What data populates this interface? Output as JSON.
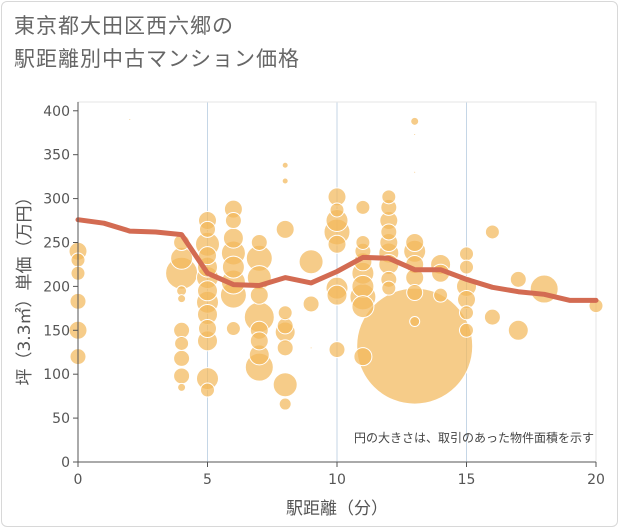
{
  "title": {
    "line1": "東京都大田区西六郷の",
    "line2": "駅距離別中古マンション価格"
  },
  "chart_data": {
    "type": "scatter",
    "xlabel": "駅距離（分）",
    "ylabel": "坪（3.3㎡）単価（万円）",
    "annotation": "円の大きさは、取引のあった物件面積を示す",
    "xlim": [
      0,
      20
    ],
    "ylim": [
      0,
      410
    ],
    "x_ticks": [
      0,
      5,
      10,
      15,
      20
    ],
    "y_ticks": [
      0,
      50,
      100,
      150,
      200,
      250,
      300,
      350,
      400
    ],
    "colors": {
      "bubble": "#f3b95b",
      "line": "#d36b52",
      "grid": "#c5d6e6",
      "text": "#555555"
    },
    "bubbles": [
      {
        "x": 0,
        "y": 240,
        "s": 9
      },
      {
        "x": 0,
        "y": 230,
        "s": 7
      },
      {
        "x": 0,
        "y": 215,
        "s": 7
      },
      {
        "x": 0,
        "y": 183,
        "s": 8
      },
      {
        "x": 0,
        "y": 150,
        "s": 9
      },
      {
        "x": 0,
        "y": 120,
        "s": 8
      },
      {
        "x": 2,
        "y": 390,
        "s": 1
      },
      {
        "x": 4,
        "y": 250,
        "s": 8
      },
      {
        "x": 4,
        "y": 232,
        "s": 11
      },
      {
        "x": 4,
        "y": 215,
        "s": 16
      },
      {
        "x": 4,
        "y": 195,
        "s": 5
      },
      {
        "x": 4,
        "y": 186,
        "s": 4
      },
      {
        "x": 4,
        "y": 150,
        "s": 8
      },
      {
        "x": 4,
        "y": 135,
        "s": 7
      },
      {
        "x": 4,
        "y": 118,
        "s": 8
      },
      {
        "x": 4,
        "y": 98,
        "s": 8
      },
      {
        "x": 4,
        "y": 85,
        "s": 4
      },
      {
        "x": 5,
        "y": 275,
        "s": 9
      },
      {
        "x": 5,
        "y": 265,
        "s": 8
      },
      {
        "x": 5,
        "y": 248,
        "s": 12
      },
      {
        "x": 5,
        "y": 235,
        "s": 9
      },
      {
        "x": 5,
        "y": 222,
        "s": 10
      },
      {
        "x": 5,
        "y": 210,
        "s": 11
      },
      {
        "x": 5,
        "y": 195,
        "s": 10
      },
      {
        "x": 5,
        "y": 182,
        "s": 11
      },
      {
        "x": 5,
        "y": 168,
        "s": 10
      },
      {
        "x": 5,
        "y": 152,
        "s": 9
      },
      {
        "x": 5,
        "y": 138,
        "s": 10
      },
      {
        "x": 5,
        "y": 95,
        "s": 11
      },
      {
        "x": 5,
        "y": 82,
        "s": 7
      },
      {
        "x": 6,
        "y": 288,
        "s": 9
      },
      {
        "x": 6,
        "y": 275,
        "s": 8
      },
      {
        "x": 6,
        "y": 255,
        "s": 10
      },
      {
        "x": 6,
        "y": 238,
        "s": 12
      },
      {
        "x": 6,
        "y": 222,
        "s": 11
      },
      {
        "x": 6,
        "y": 205,
        "s": 12
      },
      {
        "x": 6,
        "y": 190,
        "s": 13
      },
      {
        "x": 6,
        "y": 152,
        "s": 7
      },
      {
        "x": 7,
        "y": 250,
        "s": 8
      },
      {
        "x": 7,
        "y": 232,
        "s": 13
      },
      {
        "x": 7,
        "y": 210,
        "s": 12
      },
      {
        "x": 7,
        "y": 190,
        "s": 9
      },
      {
        "x": 7,
        "y": 165,
        "s": 15
      },
      {
        "x": 7,
        "y": 150,
        "s": 9
      },
      {
        "x": 7,
        "y": 138,
        "s": 9
      },
      {
        "x": 7,
        "y": 122,
        "s": 10
      },
      {
        "x": 7,
        "y": 108,
        "s": 14
      },
      {
        "x": 8,
        "y": 338,
        "s": 3
      },
      {
        "x": 8,
        "y": 320,
        "s": 3
      },
      {
        "x": 8,
        "y": 265,
        "s": 9
      },
      {
        "x": 8,
        "y": 170,
        "s": 7
      },
      {
        "x": 8,
        "y": 155,
        "s": 8
      },
      {
        "x": 8,
        "y": 148,
        "s": 10
      },
      {
        "x": 8,
        "y": 130,
        "s": 8
      },
      {
        "x": 8,
        "y": 88,
        "s": 12
      },
      {
        "x": 8,
        "y": 66,
        "s": 6
      },
      {
        "x": 9,
        "y": 228,
        "s": 12
      },
      {
        "x": 9,
        "y": 180,
        "s": 8
      },
      {
        "x": 9,
        "y": 130,
        "s": 1
      },
      {
        "x": 10,
        "y": 302,
        "s": 9
      },
      {
        "x": 10,
        "y": 287,
        "s": 7
      },
      {
        "x": 10,
        "y": 275,
        "s": 11
      },
      {
        "x": 10,
        "y": 262,
        "s": 13
      },
      {
        "x": 10,
        "y": 248,
        "s": 9
      },
      {
        "x": 10,
        "y": 198,
        "s": 11
      },
      {
        "x": 10,
        "y": 190,
        "s": 10
      },
      {
        "x": 10,
        "y": 128,
        "s": 8
      },
      {
        "x": 11,
        "y": 290,
        "s": 7
      },
      {
        "x": 11,
        "y": 250,
        "s": 7
      },
      {
        "x": 11,
        "y": 240,
        "s": 8
      },
      {
        "x": 11,
        "y": 228,
        "s": 9
      },
      {
        "x": 11,
        "y": 215,
        "s": 11
      },
      {
        "x": 11,
        "y": 200,
        "s": 11
      },
      {
        "x": 11,
        "y": 188,
        "s": 13
      },
      {
        "x": 11,
        "y": 177,
        "s": 11
      },
      {
        "x": 11,
        "y": 120,
        "s": 9
      },
      {
        "x": 12,
        "y": 302,
        "s": 7
      },
      {
        "x": 12,
        "y": 290,
        "s": 8
      },
      {
        "x": 12,
        "y": 275,
        "s": 9
      },
      {
        "x": 12,
        "y": 262,
        "s": 8
      },
      {
        "x": 12,
        "y": 250,
        "s": 9
      },
      {
        "x": 12,
        "y": 238,
        "s": 10
      },
      {
        "x": 12,
        "y": 225,
        "s": 10
      },
      {
        "x": 12,
        "y": 208,
        "s": 8
      },
      {
        "x": 12,
        "y": 198,
        "s": 7
      },
      {
        "x": 13,
        "y": 388,
        "s": 4
      },
      {
        "x": 13,
        "y": 373,
        "s": 1
      },
      {
        "x": 13,
        "y": 330,
        "s": 1
      },
      {
        "x": 13,
        "y": 250,
        "s": 9
      },
      {
        "x": 13,
        "y": 240,
        "s": 11
      },
      {
        "x": 13,
        "y": 225,
        "s": 9
      },
      {
        "x": 13,
        "y": 210,
        "s": 9
      },
      {
        "x": 13,
        "y": 193,
        "s": 8
      },
      {
        "x": 13,
        "y": 160,
        "s": 5
      },
      {
        "x": 13,
        "y": 132,
        "s": 58
      },
      {
        "x": 14,
        "y": 225,
        "s": 10
      },
      {
        "x": 14,
        "y": 215,
        "s": 9
      },
      {
        "x": 14,
        "y": 190,
        "s": 7
      },
      {
        "x": 15,
        "y": 237,
        "s": 7
      },
      {
        "x": 15,
        "y": 222,
        "s": 7
      },
      {
        "x": 15,
        "y": 200,
        "s": 10
      },
      {
        "x": 15,
        "y": 185,
        "s": 9
      },
      {
        "x": 15,
        "y": 170,
        "s": 7
      },
      {
        "x": 15,
        "y": 150,
        "s": 7
      },
      {
        "x": 16,
        "y": 262,
        "s": 7
      },
      {
        "x": 16,
        "y": 165,
        "s": 8
      },
      {
        "x": 17,
        "y": 208,
        "s": 8
      },
      {
        "x": 17,
        "y": 150,
        "s": 10
      },
      {
        "x": 18,
        "y": 197,
        "s": 14
      },
      {
        "x": 20,
        "y": 178,
        "s": 7
      }
    ],
    "series": [
      {
        "x": [
          0,
          1,
          2,
          3,
          4,
          5,
          6,
          7,
          8,
          9,
          10,
          11,
          12,
          13,
          14,
          15,
          16,
          17,
          18,
          19,
          20
        ],
        "values": [
          276,
          272,
          263,
          262,
          259,
          215,
          202,
          201,
          210,
          204,
          217,
          233,
          232,
          219,
          219,
          208,
          199,
          194,
          191,
          184,
          184
        ]
      }
    ]
  }
}
